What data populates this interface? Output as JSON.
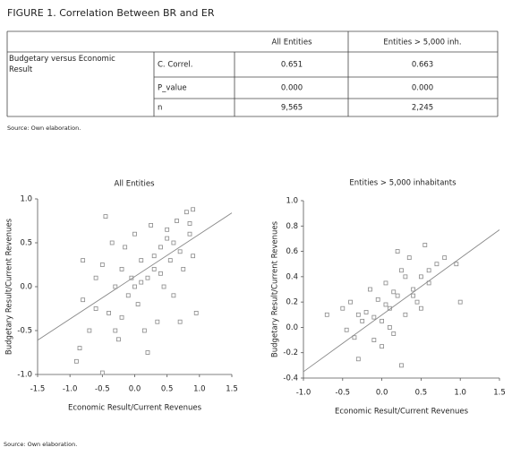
{
  "figure_title": "FIGURE 1. Correlation Between BR and ER",
  "table": {
    "columns": [
      "All Entities",
      "Entities > 5,000 inh."
    ],
    "group_label": "Budgetary versus Economic Result",
    "rows": [
      {
        "label": "C. Correl.",
        "values": [
          "0.651",
          "0.663"
        ]
      },
      {
        "label": "P_value",
        "values": [
          "0.000",
          "0.000"
        ]
      },
      {
        "label": "n",
        "values": [
          "9,565",
          "2,245"
        ]
      }
    ]
  },
  "table_source": "Source: Own elaboration.",
  "chart_data": [
    {
      "type": "scatter",
      "title": "All Entities",
      "x_label": "Economic Result/Current Revenues",
      "y_label": "Budgetary Result/Current Revenues",
      "xlim": [
        -1.5,
        1.5
      ],
      "ylim": [
        -1.0,
        1.0
      ],
      "xticks": [
        {
          "value": -1.5,
          "label": "-1.5"
        },
        {
          "value": -1,
          "label": "-1.0"
        },
        {
          "value": -0.5,
          "label": "-0.5"
        },
        {
          "value": 0,
          "label": "0.0"
        },
        {
          "value": 0.5,
          "label": "0.5"
        },
        {
          "value": 1,
          "label": "1.0"
        },
        {
          "value": 1.5,
          "label": "1.5"
        }
      ],
      "yticks": [
        {
          "value": -1,
          "label": "-1.0"
        },
        {
          "value": -0.5,
          "label": "-0.5"
        },
        {
          "value": 0,
          "label": "0.0"
        },
        {
          "value": 0.5,
          "label": "0.5"
        },
        {
          "value": 1,
          "label": "1.0"
        }
      ],
      "color": "#888888",
      "x": [
        -0.9,
        -0.85,
        -0.8,
        -0.7,
        -0.6,
        -0.5,
        -0.45,
        -0.4,
        -0.35,
        -0.3,
        -0.25,
        -0.2,
        -0.15,
        -0.1,
        -0.05,
        0,
        0.05,
        0.1,
        0.15,
        0.2,
        0.25,
        0.3,
        0.35,
        0.4,
        0.45,
        0.5,
        0.55,
        0.6,
        0.65,
        0.7,
        0.75,
        0.8,
        0.85,
        0.9,
        0.95,
        -0.6,
        -0.3,
        0,
        0.3,
        0.6,
        0.9,
        -0.8,
        0.2,
        0.5,
        -0.5,
        0.1,
        0.7,
        -0.2,
        0.4,
        0.85
      ],
      "values": [
        -0.85,
        -0.7,
        0.3,
        -0.5,
        0.1,
        -0.98,
        0.8,
        -0.3,
        0.5,
        0.0,
        -0.6,
        0.2,
        0.45,
        -0.1,
        0.1,
        0.6,
        -0.2,
        0.3,
        -0.5,
        0.1,
        0.7,
        0.2,
        -0.4,
        0.45,
        0.0,
        0.55,
        0.3,
        -0.1,
        0.75,
        0.4,
        0.2,
        0.85,
        0.6,
        0.35,
        -0.3,
        -0.25,
        -0.5,
        0.0,
        0.35,
        0.5,
        0.88,
        -0.15,
        -0.75,
        0.65,
        0.25,
        0.05,
        -0.4,
        -0.35,
        0.15,
        0.72
      ],
      "trend": {
        "x": [
          -1.5,
          1.5
        ],
        "y": [
          -0.61,
          0.84
        ]
      }
    },
    {
      "type": "scatter",
      "title": "Entities > 5,000 inhabitants",
      "x_label": "Economic Result/Current Revenues",
      "y_label": "Budgetary Result/Current Revenues",
      "xlim": [
        -1.0,
        1.5
      ],
      "ylim": [
        -0.4,
        1.0
      ],
      "xticks": [
        {
          "value": -1,
          "label": "-1.0"
        },
        {
          "value": -0.5,
          "label": "-0.5"
        },
        {
          "value": 0,
          "label": "0.0"
        },
        {
          "value": 0.5,
          "label": "0.5"
        },
        {
          "value": 1,
          "label": "1.0"
        },
        {
          "value": 1.5,
          "label": "1.5"
        }
      ],
      "yticks": [
        {
          "value": -0.4,
          "label": "-0.4"
        },
        {
          "value": -0.2,
          "label": "-0.2"
        },
        {
          "value": 0,
          "label": "0.0"
        },
        {
          "value": 0.2,
          "label": "0.2"
        },
        {
          "value": 0.4,
          "label": "0.4"
        },
        {
          "value": 0.6,
          "label": "0.6"
        },
        {
          "value": 0.8,
          "label": "0.8"
        },
        {
          "value": 1,
          "label": "1.0"
        }
      ],
      "color": "#888888",
      "x": [
        -0.7,
        -0.5,
        -0.45,
        -0.4,
        -0.3,
        -0.25,
        -0.2,
        -0.15,
        -0.1,
        -0.05,
        0,
        0.05,
        0.1,
        0.15,
        0.2,
        0.25,
        0.3,
        0.35,
        0.4,
        0.45,
        0.5,
        0.55,
        0.6,
        0.7,
        0.8,
        0.95,
        1.0,
        -0.3,
        0,
        0.2,
        0.3,
        0.1,
        -0.1,
        0.25,
        0.4,
        0.5,
        0.6,
        -0.35,
        0.05,
        0.15
      ],
      "values": [
        0.1,
        0.15,
        -0.02,
        0.2,
        -0.25,
        0.05,
        0.12,
        0.3,
        -0.1,
        0.22,
        0.05,
        0.35,
        0.15,
        -0.05,
        0.25,
        0.45,
        0.1,
        0.55,
        0.3,
        0.2,
        0.4,
        0.65,
        0.35,
        0.5,
        0.55,
        0.5,
        0.2,
        0.1,
        -0.15,
        0.6,
        0.4,
        0.0,
        0.08,
        -0.3,
        0.25,
        0.15,
        0.45,
        -0.08,
        0.18,
        0.28
      ],
      "trend": {
        "x": [
          -1.0,
          1.5
        ],
        "y": [
          -0.35,
          0.77
        ]
      }
    }
  ],
  "figure_source": "Source: Own elaboration."
}
